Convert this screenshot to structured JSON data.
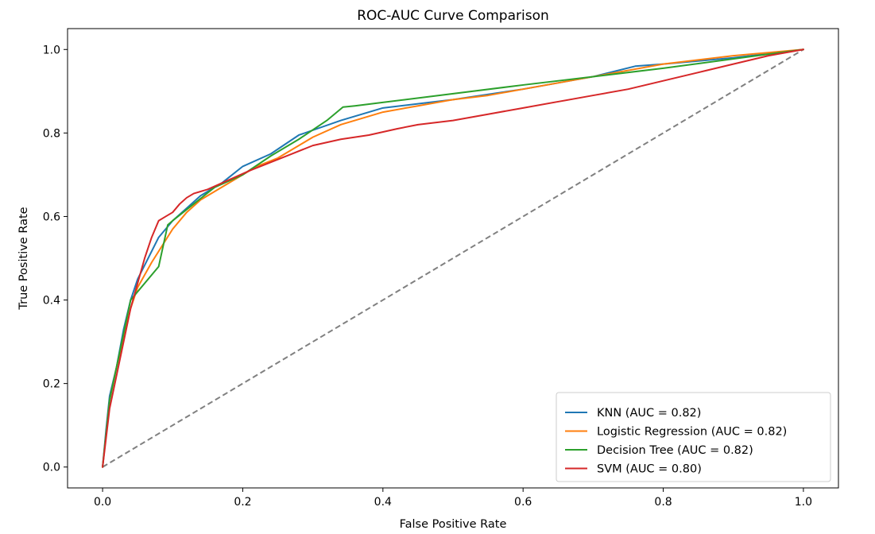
{
  "chart_data": {
    "type": "line",
    "title": "ROC-AUC Curve Comparison",
    "xlabel": "False Positive Rate",
    "ylabel": "True Positive Rate",
    "xlim": [
      -0.05,
      1.05
    ],
    "ylim": [
      -0.05,
      1.05
    ],
    "xticks": [
      0.0,
      0.2,
      0.4,
      0.6,
      0.8,
      1.0
    ],
    "yticks": [
      0.0,
      0.2,
      0.4,
      0.6,
      0.8,
      1.0
    ],
    "x_tick_labels": [
      "0.0",
      "0.2",
      "0.4",
      "0.6",
      "0.8",
      "1.0"
    ],
    "y_tick_labels": [
      "0.0",
      "0.2",
      "0.4",
      "0.6",
      "0.8",
      "1.0"
    ],
    "grid": false,
    "legend_position": "lower-right",
    "reference_line": {
      "x": [
        0,
        1
      ],
      "y": [
        0,
        1
      ],
      "color": "#808080",
      "style": "dashed"
    },
    "series": [
      {
        "name": "KNN (AUC = 0.82)",
        "color": "#1f77b4",
        "x": [
          0,
          0.005,
          0.01,
          0.02,
          0.03,
          0.04,
          0.05,
          0.065,
          0.08,
          0.1,
          0.12,
          0.14,
          0.17,
          0.2,
          0.24,
          0.28,
          0.34,
          0.4,
          0.5,
          0.6,
          0.7,
          0.76,
          0.8,
          0.9,
          1.0
        ],
        "y": [
          0,
          0.09,
          0.17,
          0.24,
          0.33,
          0.4,
          0.45,
          0.5,
          0.55,
          0.59,
          0.62,
          0.65,
          0.68,
          0.72,
          0.75,
          0.795,
          0.83,
          0.86,
          0.88,
          0.905,
          0.935,
          0.96,
          0.965,
          0.98,
          1.0
        ]
      },
      {
        "name": "Logistic Regression (AUC = 0.82)",
        "color": "#ff7f0e",
        "x": [
          0,
          0.005,
          0.01,
          0.02,
          0.03,
          0.04,
          0.05,
          0.06,
          0.07,
          0.085,
          0.1,
          0.12,
          0.14,
          0.17,
          0.2,
          0.22,
          0.25,
          0.28,
          0.3,
          0.34,
          0.4,
          0.45,
          0.5,
          0.55,
          0.6,
          0.65,
          0.7,
          0.75,
          0.8,
          0.9,
          1.0
        ],
        "y": [
          0,
          0.08,
          0.16,
          0.24,
          0.31,
          0.38,
          0.43,
          0.46,
          0.49,
          0.53,
          0.57,
          0.61,
          0.64,
          0.67,
          0.7,
          0.72,
          0.74,
          0.77,
          0.79,
          0.82,
          0.85,
          0.865,
          0.88,
          0.89,
          0.905,
          0.92,
          0.935,
          0.95,
          0.965,
          0.985,
          1.0
        ]
      },
      {
        "name": "Decision Tree (AUC = 0.82)",
        "color": "#2ca02c",
        "x": [
          0,
          0.01,
          0.04,
          0.08,
          0.093,
          0.1,
          0.13,
          0.16,
          0.2,
          0.24,
          0.28,
          0.32,
          0.343,
          0.36,
          0.6,
          0.8,
          1.0
        ],
        "y": [
          0,
          0.16,
          0.4,
          0.48,
          0.58,
          0.59,
          0.63,
          0.67,
          0.7,
          0.745,
          0.785,
          0.83,
          0.862,
          0.865,
          0.915,
          0.955,
          1.0
        ]
      },
      {
        "name": "SVM (AUC = 0.80)",
        "color": "#d62728",
        "x": [
          0,
          0.005,
          0.01,
          0.02,
          0.03,
          0.04,
          0.05,
          0.06,
          0.07,
          0.08,
          0.09,
          0.1,
          0.11,
          0.12,
          0.13,
          0.15,
          0.17,
          0.19,
          0.21,
          0.24,
          0.27,
          0.3,
          0.34,
          0.38,
          0.42,
          0.45,
          0.5,
          0.55,
          0.6,
          0.65,
          0.7,
          0.75,
          0.8,
          0.85,
          0.9,
          0.95,
          1.0
        ],
        "y": [
          0,
          0.07,
          0.14,
          0.22,
          0.3,
          0.38,
          0.44,
          0.5,
          0.55,
          0.59,
          0.6,
          0.61,
          0.63,
          0.645,
          0.655,
          0.665,
          0.68,
          0.695,
          0.71,
          0.73,
          0.75,
          0.77,
          0.785,
          0.795,
          0.81,
          0.82,
          0.83,
          0.845,
          0.86,
          0.875,
          0.89,
          0.905,
          0.925,
          0.945,
          0.965,
          0.985,
          1.0
        ]
      }
    ]
  }
}
